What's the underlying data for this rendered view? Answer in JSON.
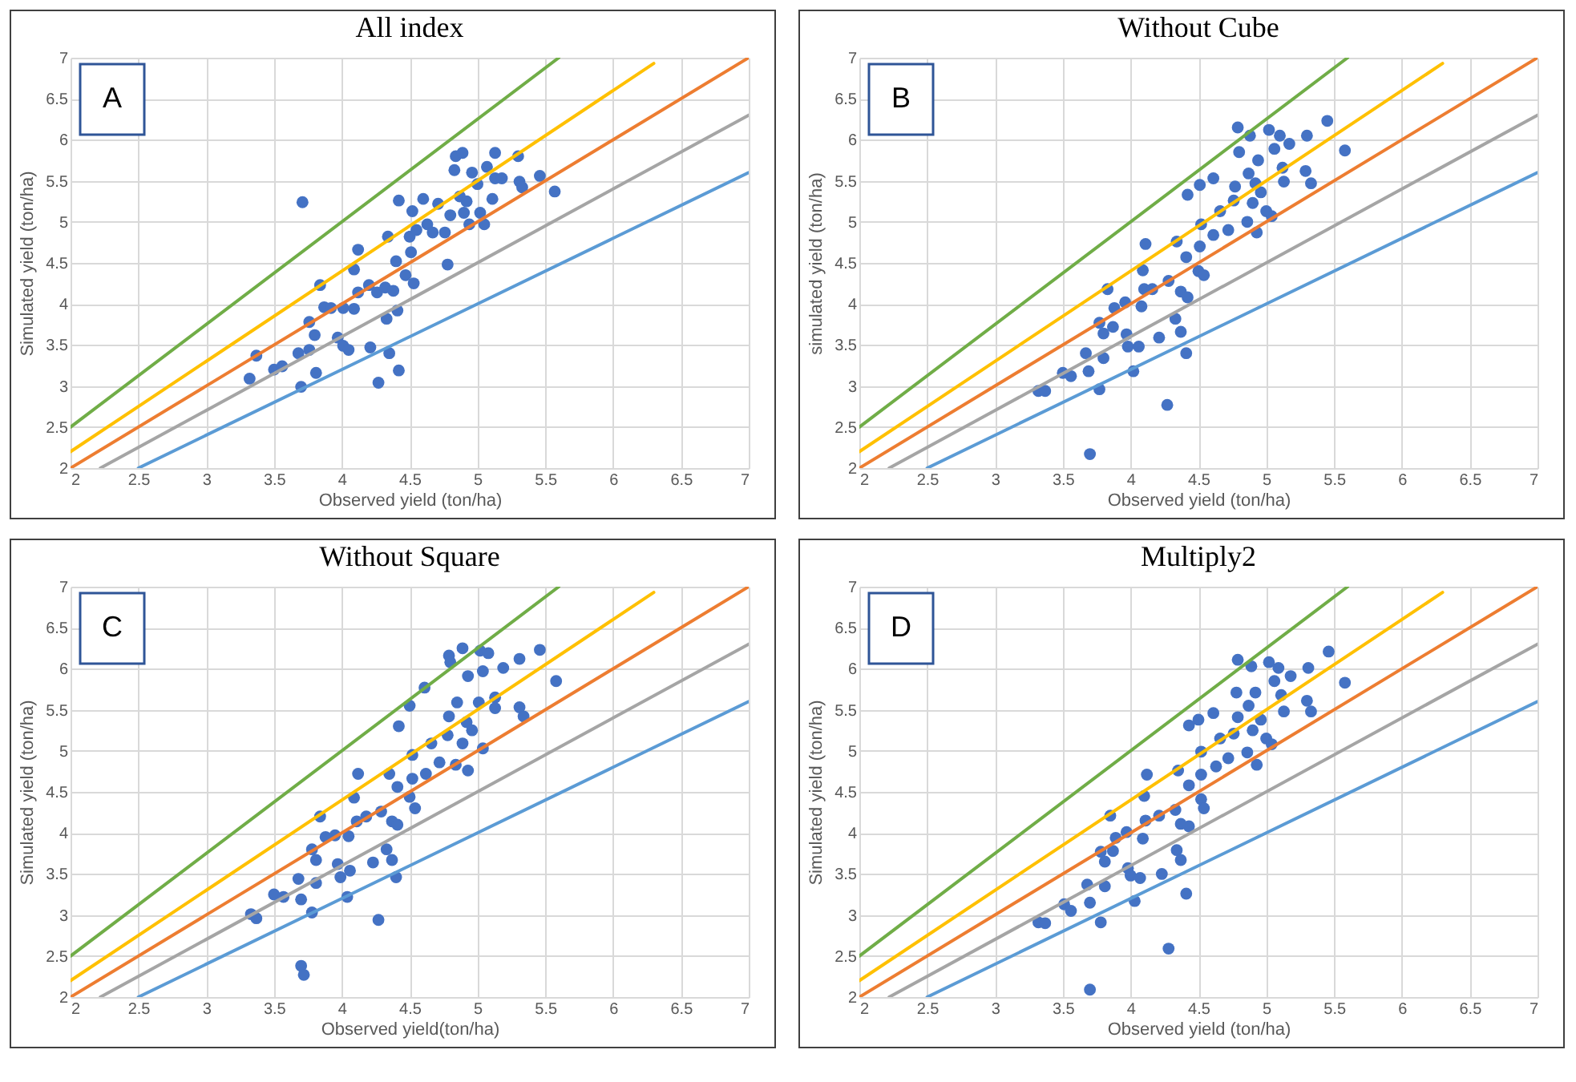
{
  "chart_data": [
    {
      "type": "scatter",
      "title": "All index",
      "xlabel": "Observed yield (ton/ha)",
      "ylabel": "Simulated yield (ton/ha)",
      "annotations": [
        "A"
      ],
      "xlim": [
        2,
        7
      ],
      "ylim": [
        2,
        7
      ],
      "xticks": [
        2,
        2.5,
        3,
        3.5,
        4,
        4.5,
        5,
        5.5,
        6,
        6.5,
        7
      ],
      "yticks": [
        2,
        2.5,
        3,
        3.5,
        4,
        4.5,
        5,
        5.5,
        6,
        6.5,
        7
      ],
      "grid": true,
      "series": [
        {
          "type": "scatter",
          "color": "#4472c4",
          "x": [
            3.71,
            3.32,
            3.37,
            3.5,
            3.56,
            3.68,
            3.7,
            3.76,
            3.81,
            3.76,
            3.8,
            3.84,
            3.87,
            3.92,
            3.97,
            4.01,
            4.05,
            4.01,
            4.09,
            4.09,
            4.12,
            4.12,
            4.21,
            4.2,
            4.26,
            4.27,
            4.32,
            4.34,
            4.33,
            4.35,
            4.38,
            4.42,
            4.41,
            4.42,
            4.4,
            4.47,
            4.53,
            4.52,
            4.5,
            4.51,
            4.55,
            4.6,
            4.63,
            4.67,
            4.71,
            4.78,
            4.76,
            4.8,
            4.83,
            4.84,
            4.89,
            4.87,
            4.92,
            4.9,
            4.94,
            4.96,
            5.0,
            5.02,
            5.05,
            5.07,
            5.11,
            5.13,
            5.13,
            5.18,
            5.3,
            5.31,
            5.33,
            5.46,
            5.57
          ],
          "values": [
            5.24,
            3.09,
            3.37,
            3.2,
            3.24,
            3.4,
            2.99,
            3.44,
            3.16,
            3.78,
            3.62,
            4.23,
            3.96,
            3.95,
            3.59,
            3.49,
            3.44,
            3.95,
            3.94,
            4.42,
            4.66,
            4.14,
            3.47,
            4.23,
            4.14,
            3.04,
            4.2,
            4.82,
            3.82,
            3.4,
            4.16,
            5.26,
            3.92,
            3.19,
            4.52,
            4.35,
            4.25,
            5.13,
            4.82,
            4.63,
            4.9,
            5.28,
            4.97,
            4.87,
            5.22,
            4.48,
            4.87,
            5.08,
            5.63,
            5.8,
            5.84,
            5.31,
            5.25,
            5.11,
            4.97,
            5.6,
            5.46,
            5.11,
            4.97,
            5.67,
            5.28,
            5.84,
            5.53,
            5.53,
            5.8,
            5.49,
            5.42,
            5.56,
            5.37
          ]
        },
        {
          "type": "line",
          "color": "#70ad47",
          "x": [
            2,
            5.6
          ],
          "values": [
            2.5,
            7
          ]
        },
        {
          "type": "line",
          "color": "#ffc000",
          "x": [
            2,
            6.3
          ],
          "values": [
            2.2,
            6.93
          ]
        },
        {
          "type": "line",
          "color": "#ed7d31",
          "x": [
            2,
            7
          ],
          "values": [
            2,
            7
          ]
        },
        {
          "type": "line",
          "color": "#a5a5a5",
          "x": [
            2.22,
            7
          ],
          "values": [
            2,
            6.3
          ]
        },
        {
          "type": "line",
          "color": "#5b9bd5",
          "x": [
            2.5,
            7
          ],
          "values": [
            2,
            5.6
          ]
        }
      ]
    },
    {
      "type": "scatter",
      "title": "Without Cube",
      "xlabel": "Observed yield (ton/ha)",
      "ylabel": "simulated yield (ton/ha)",
      "annotations": [
        "B"
      ],
      "xlim": [
        2,
        7
      ],
      "ylim": [
        2,
        7
      ],
      "xticks": [
        2,
        2.5,
        3,
        3.5,
        4,
        4.5,
        5,
        5.5,
        6,
        6.5,
        7
      ],
      "yticks": [
        2,
        2.5,
        3,
        3.5,
        4,
        4.5,
        5,
        5.5,
        6,
        6.5,
        7
      ],
      "grid": true,
      "series": [
        {
          "type": "scatter",
          "color": "#4472c4",
          "x": [
            3.7,
            3.32,
            3.37,
            3.5,
            3.56,
            3.67,
            3.69,
            3.77,
            3.8,
            3.77,
            3.8,
            3.83,
            3.88,
            3.87,
            3.96,
            3.97,
            3.98,
            4.06,
            4.02,
            4.08,
            4.09,
            4.11,
            4.1,
            4.16,
            4.21,
            4.27,
            4.28,
            4.33,
            4.34,
            4.37,
            4.37,
            4.41,
            4.42,
            4.41,
            4.42,
            4.5,
            4.54,
            4.51,
            4.52,
            4.51,
            4.61,
            4.61,
            4.66,
            4.72,
            4.76,
            4.77,
            4.79,
            4.8,
            4.86,
            4.87,
            4.88,
            4.9,
            4.92,
            4.93,
            4.94,
            4.96,
            5.0,
            5.02,
            5.04,
            5.06,
            5.1,
            5.12,
            5.13,
            5.17,
            5.3,
            5.29,
            5.33,
            5.45,
            5.58
          ],
          "values": [
            2.17,
            2.94,
            2.94,
            3.16,
            3.12,
            3.4,
            3.18,
            2.96,
            3.34,
            3.77,
            3.64,
            4.18,
            3.95,
            3.72,
            4.02,
            3.63,
            3.48,
            3.48,
            3.18,
            3.97,
            4.41,
            4.73,
            4.18,
            4.18,
            3.59,
            2.77,
            4.28,
            3.82,
            4.76,
            3.66,
            4.15,
            3.4,
            4.08,
            4.57,
            5.33,
            4.4,
            4.35,
            4.7,
            4.97,
            5.45,
            5.53,
            4.84,
            5.13,
            4.9,
            5.26,
            5.43,
            6.15,
            5.85,
            5.0,
            5.59,
            6.05,
            5.23,
            5.47,
            4.87,
            5.75,
            5.36,
            5.13,
            6.12,
            5.07,
            5.89,
            6.05,
            5.66,
            5.49,
            5.95,
            6.05,
            5.62,
            5.47,
            6.23,
            5.87
          ]
        },
        {
          "type": "line",
          "color": "#70ad47",
          "x": [
            2,
            5.6
          ],
          "values": [
            2.5,
            7
          ]
        },
        {
          "type": "line",
          "color": "#ffc000",
          "x": [
            2,
            6.3
          ],
          "values": [
            2.2,
            6.93
          ]
        },
        {
          "type": "line",
          "color": "#ed7d31",
          "x": [
            2,
            7
          ],
          "values": [
            2,
            7
          ]
        },
        {
          "type": "line",
          "color": "#a5a5a5",
          "x": [
            2.22,
            7
          ],
          "values": [
            2,
            6.3
          ]
        },
        {
          "type": "line",
          "color": "#5b9bd5",
          "x": [
            2.5,
            7
          ],
          "values": [
            2,
            5.6
          ]
        }
      ]
    },
    {
      "type": "scatter",
      "title": "Without Square",
      "xlabel": "Observed yield(ton/ha)",
      "ylabel": "Simulated yield (ton/ha)",
      "annotations": [
        "C"
      ],
      "xlim": [
        2,
        7
      ],
      "ylim": [
        2,
        7
      ],
      "xticks": [
        2,
        2.5,
        3,
        3.5,
        4,
        4.5,
        5,
        5.5,
        6,
        6.5,
        7
      ],
      "yticks": [
        2,
        2.5,
        3,
        3.5,
        4,
        4.5,
        5,
        5.5,
        6,
        6.5,
        7
      ],
      "grid": true,
      "series": [
        {
          "type": "scatter",
          "color": "#4472c4",
          "x": [
            3.7,
            3.72,
            3.33,
            3.37,
            3.5,
            3.57,
            3.68,
            3.7,
            3.78,
            3.78,
            3.81,
            3.81,
            3.84,
            3.88,
            3.95,
            3.97,
            3.99,
            4.06,
            4.04,
            4.05,
            4.09,
            4.12,
            4.11,
            4.18,
            4.23,
            4.27,
            4.29,
            4.33,
            4.35,
            4.37,
            4.37,
            4.4,
            4.41,
            4.41,
            4.42,
            4.5,
            4.54,
            4.52,
            4.52,
            4.5,
            4.61,
            4.62,
            4.66,
            4.72,
            4.78,
            4.79,
            4.79,
            4.8,
            4.84,
            4.85,
            4.89,
            4.89,
            4.92,
            4.93,
            4.93,
            4.96,
            5.01,
            5.04,
            5.02,
            5.08,
            5.04,
            5.13,
            5.13,
            5.19,
            5.31,
            5.31,
            5.34,
            5.46,
            5.58
          ],
          "values": [
            2.38,
            2.27,
            3.01,
            2.96,
            3.25,
            3.22,
            3.44,
            3.19,
            3.03,
            3.8,
            3.67,
            3.39,
            4.2,
            3.95,
            3.97,
            3.62,
            3.46,
            3.54,
            3.22,
            3.96,
            4.43,
            4.72,
            4.14,
            4.2,
            3.64,
            2.94,
            4.26,
            3.8,
            4.72,
            3.67,
            4.14,
            3.46,
            4.1,
            4.56,
            5.3,
            4.44,
            4.3,
            4.66,
            4.95,
            5.55,
            5.77,
            4.72,
            5.09,
            4.86,
            5.19,
            5.42,
            6.16,
            6.08,
            4.83,
            5.59,
            6.25,
            5.09,
            5.35,
            4.76,
            5.91,
            5.25,
            5.59,
            5.03,
            6.22,
            6.19,
            5.97,
            5.65,
            5.52,
            6.01,
            6.12,
            5.53,
            5.42,
            6.23,
            5.85
          ]
        },
        {
          "type": "line",
          "color": "#70ad47",
          "x": [
            2,
            5.6
          ],
          "values": [
            2.5,
            7
          ]
        },
        {
          "type": "line",
          "color": "#ffc000",
          "x": [
            2,
            6.3
          ],
          "values": [
            2.2,
            6.93
          ]
        },
        {
          "type": "line",
          "color": "#ed7d31",
          "x": [
            2,
            7
          ],
          "values": [
            2,
            7
          ]
        },
        {
          "type": "line",
          "color": "#a5a5a5",
          "x": [
            2.22,
            7
          ],
          "values": [
            2,
            6.3
          ]
        },
        {
          "type": "line",
          "color": "#5b9bd5",
          "x": [
            2.5,
            7
          ],
          "values": [
            2,
            5.6
          ]
        }
      ]
    },
    {
      "type": "scatter",
      "title": "Multiply2",
      "xlabel": "Observed yield (ton/ha)",
      "ylabel": "Simulated yield (ton/ha)",
      "annotations": [
        "D"
      ],
      "xlim": [
        2,
        7
      ],
      "ylim": [
        2,
        7
      ],
      "xticks": [
        2,
        2.5,
        3,
        3.5,
        4,
        4.5,
        5,
        5.5,
        6,
        6.5,
        7
      ],
      "yticks": [
        2,
        2.5,
        3,
        3.5,
        4,
        4.5,
        5,
        5.5,
        6,
        6.5,
        7
      ],
      "grid": true,
      "series": [
        {
          "type": "scatter",
          "color": "#4472c4",
          "x": [
            3.7,
            3.32,
            3.37,
            3.51,
            3.56,
            3.68,
            3.7,
            3.78,
            3.81,
            3.78,
            3.81,
            3.85,
            3.89,
            3.87,
            3.97,
            3.98,
            4.0,
            4.07,
            4.03,
            4.09,
            4.1,
            4.12,
            4.11,
            4.21,
            4.23,
            4.28,
            4.33,
            4.34,
            4.35,
            4.37,
            4.37,
            4.41,
            4.43,
            4.43,
            4.43,
            4.52,
            4.54,
            4.52,
            4.52,
            4.5,
            4.61,
            4.63,
            4.66,
            4.72,
            4.76,
            4.78,
            4.79,
            4.79,
            4.86,
            4.87,
            4.89,
            4.9,
            4.92,
            4.93,
            4.96,
            5.0,
            5.02,
            5.04,
            5.06,
            5.09,
            5.11,
            5.13,
            5.18,
            5.31,
            5.3,
            5.33,
            5.46,
            5.58
          ],
          "values": [
            2.09,
            2.91,
            2.9,
            3.13,
            3.05,
            3.37,
            3.15,
            2.91,
            3.35,
            3.77,
            3.65,
            4.21,
            3.94,
            3.78,
            4.01,
            3.57,
            3.48,
            3.45,
            3.17,
            3.93,
            4.45,
            4.71,
            4.15,
            4.21,
            3.5,
            2.59,
            4.28,
            3.79,
            4.76,
            3.67,
            4.11,
            3.26,
            4.08,
            4.58,
            5.31,
            4.41,
            4.3,
            4.71,
            4.99,
            5.38,
            5.46,
            4.81,
            5.15,
            4.91,
            5.21,
            5.71,
            6.11,
            5.41,
            4.98,
            5.55,
            6.03,
            5.25,
            5.71,
            4.83,
            5.38,
            5.15,
            6.08,
            5.08,
            5.85,
            6.01,
            5.68,
            5.48,
            5.91,
            6.01,
            5.61,
            5.48,
            6.21,
            5.83
          ]
        },
        {
          "type": "line",
          "color": "#70ad47",
          "x": [
            2,
            5.6
          ],
          "values": [
            2.5,
            7
          ]
        },
        {
          "type": "line",
          "color": "#ffc000",
          "x": [
            2,
            6.3
          ],
          "values": [
            2.2,
            6.93
          ]
        },
        {
          "type": "line",
          "color": "#ed7d31",
          "x": [
            2,
            7
          ],
          "values": [
            2,
            7
          ]
        },
        {
          "type": "line",
          "color": "#a5a5a5",
          "x": [
            2.22,
            7
          ],
          "values": [
            2,
            6.3
          ]
        },
        {
          "type": "line",
          "color": "#5b9bd5",
          "x": [
            2.5,
            7
          ],
          "values": [
            2,
            5.6
          ]
        }
      ]
    }
  ]
}
